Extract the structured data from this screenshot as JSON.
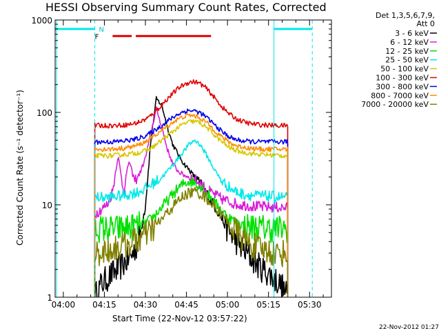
{
  "chart_data": {
    "type": "line",
    "title": "HESSI Observing Summary Count Rates, Corrected",
    "xlabel": "Start Time (22-Nov-12 03:57:22)",
    "ylabel": "Corrected Count Rate (s⁻¹ detector⁻¹)",
    "yscale": "log",
    "ylim": [
      1,
      1000
    ],
    "xlim_minutes": [
      -3,
      98
    ],
    "x_unit": "minutes after 04:00 UT",
    "x_tick_labels": [
      "04:00",
      "04:15",
      "04:30",
      "04:45",
      "05:00",
      "05:15",
      "05:30"
    ],
    "x_tick_values": [
      0,
      15,
      30,
      45,
      60,
      75,
      90
    ],
    "y_tick_labels": [
      "1",
      "10",
      "100",
      "1000"
    ],
    "y_tick_values": [
      1,
      10,
      100,
      1000
    ],
    "legend_header": [
      "Det 1,3,5,6,7,9,",
      "Att 0"
    ],
    "legend_position": "right",
    "data_range_minutes": [
      11.5,
      82
    ],
    "series": [
      {
        "name": "3 - 6 keV",
        "color": "#000000",
        "x": [
          11.5,
          14,
          16,
          18,
          20,
          22,
          24,
          26,
          28,
          30,
          32,
          34,
          36,
          38,
          40,
          42,
          44,
          46,
          48,
          50,
          52,
          54,
          56,
          58,
          60,
          62,
          64,
          66,
          68,
          70,
          72,
          74,
          76,
          78,
          80,
          82
        ],
        "y": [
          1,
          1.4,
          1.6,
          1.8,
          2.0,
          2.3,
          2.6,
          3.2,
          4.5,
          10,
          50,
          140,
          120,
          70,
          45,
          35,
          28,
          24,
          20,
          17,
          14,
          11,
          9,
          7,
          5.5,
          4.5,
          3.8,
          3.2,
          2.8,
          2.4,
          2.1,
          1.9,
          1.7,
          1.5,
          1.3,
          1.0
        ]
      },
      {
        "name": "6 - 12 keV",
        "color": "#d81ed8",
        "x": [
          11.5,
          14,
          16,
          18,
          20,
          22,
          24,
          26,
          28,
          30,
          32,
          34,
          36,
          38,
          40,
          42,
          44,
          46,
          48,
          50,
          52,
          54,
          56,
          58,
          60,
          62,
          64,
          66,
          68,
          70,
          72,
          74,
          76,
          78,
          80,
          82
        ],
        "y": [
          8,
          9,
          10,
          14,
          34,
          14,
          30,
          18,
          22,
          32,
          60,
          110,
          70,
          40,
          28,
          23,
          21,
          20,
          19,
          17,
          15,
          13.5,
          12.5,
          11.5,
          11,
          10.5,
          10,
          10,
          9.8,
          9.6,
          9.5,
          9.5,
          9.4,
          9.4,
          9.3,
          9.3
        ]
      },
      {
        "name": "12 - 25 keV",
        "color": "#00e000",
        "x": [
          11.5,
          14,
          16,
          18,
          20,
          22,
          24,
          26,
          28,
          30,
          32,
          34,
          36,
          38,
          40,
          42,
          44,
          46,
          48,
          50,
          52,
          54,
          56,
          58,
          60,
          62,
          64,
          66,
          68,
          70,
          72,
          74,
          76,
          78,
          80,
          82
        ],
        "y": [
          5.5,
          5.5,
          5.5,
          5.5,
          5.5,
          5.6,
          5.7,
          5.8,
          6.0,
          6.3,
          7.0,
          8.0,
          9.5,
          11,
          13,
          15,
          17,
          18,
          17.5,
          16,
          14,
          12,
          10,
          8.5,
          7.5,
          6.8,
          6.3,
          6.0,
          5.8,
          5.7,
          5.6,
          5.6,
          5.5,
          5.5,
          5.5,
          5.5
        ]
      },
      {
        "name": "25 - 50 keV",
        "color": "#00e8e8",
        "x": [
          11.5,
          14,
          16,
          18,
          20,
          22,
          24,
          26,
          28,
          30,
          32,
          34,
          36,
          38,
          40,
          42,
          44,
          46,
          48,
          50,
          52,
          54,
          56,
          58,
          60,
          62,
          64,
          66,
          68,
          70,
          72,
          74,
          76,
          78,
          80,
          82
        ],
        "y": [
          12,
          12,
          12,
          12.2,
          12.4,
          12.6,
          13,
          13.5,
          14,
          15,
          16.5,
          18,
          20,
          23,
          27,
          32,
          38,
          45,
          50,
          45,
          36,
          28,
          22,
          18,
          16,
          14.5,
          13.5,
          13,
          12.8,
          12.6,
          12.5,
          12.4,
          12.3,
          12.2,
          12.1,
          12
        ]
      },
      {
        "name": "50 - 100 keV",
        "color": "#d8c800",
        "x": [
          11.5,
          14,
          16,
          18,
          20,
          22,
          24,
          26,
          28,
          30,
          32,
          34,
          36,
          38,
          40,
          42,
          44,
          46,
          48,
          50,
          52,
          54,
          56,
          58,
          60,
          62,
          64,
          66,
          68,
          70,
          72,
          74,
          76,
          78,
          80,
          82
        ],
        "y": [
          34,
          34,
          34,
          34,
          34.5,
          35,
          35.5,
          36,
          37,
          38.5,
          41,
          45,
          50,
          56,
          62,
          69,
          75,
          79,
          80,
          77,
          70,
          62,
          54,
          48,
          43,
          40,
          38,
          37,
          36,
          35.5,
          35,
          35,
          34.5,
          34.5,
          34,
          34
        ]
      },
      {
        "name": "100 - 300 keV",
        "color": "#e00000",
        "x": [
          11.5,
          14,
          16,
          18,
          20,
          22,
          24,
          26,
          28,
          30,
          32,
          34,
          36,
          38,
          40,
          42,
          44,
          46,
          48,
          50,
          52,
          54,
          56,
          58,
          60,
          62,
          64,
          66,
          68,
          70,
          72,
          74,
          76,
          78,
          80,
          82
        ],
        "y": [
          72,
          72,
          72,
          72,
          72.5,
          73,
          74,
          76,
          79,
          84,
          92,
          105,
          120,
          140,
          160,
          182,
          200,
          212,
          215,
          205,
          185,
          160,
          135,
          115,
          100,
          90,
          83,
          79,
          76,
          74.5,
          73.5,
          73,
          72.5,
          72,
          72,
          72
        ]
      },
      {
        "name": "300 - 800 keV",
        "color": "#0000e8",
        "x": [
          11.5,
          14,
          16,
          18,
          20,
          22,
          24,
          26,
          28,
          30,
          32,
          34,
          36,
          38,
          40,
          42,
          44,
          46,
          48,
          50,
          52,
          54,
          56,
          58,
          60,
          62,
          64,
          66,
          68,
          70,
          72,
          74,
          76,
          78,
          80,
          82
        ],
        "y": [
          48,
          48,
          48,
          48,
          48.5,
          49,
          50,
          51,
          53,
          56,
          60,
          66,
          72,
          80,
          88,
          96,
          102,
          105,
          104,
          99,
          90,
          80,
          70,
          62,
          56,
          52,
          50,
          49,
          48.5,
          48,
          48,
          48,
          48,
          48,
          48,
          48
        ]
      },
      {
        "name": "800 - 7000 keV",
        "color": "#ff8c00",
        "x": [
          11.5,
          14,
          16,
          18,
          20,
          22,
          24,
          26,
          28,
          30,
          32,
          34,
          36,
          38,
          40,
          42,
          44,
          46,
          48,
          50,
          52,
          54,
          56,
          58,
          60,
          62,
          64,
          66,
          68,
          70,
          72,
          74,
          76,
          78,
          80,
          82
        ],
        "y": [
          40,
          40,
          40,
          40,
          40.5,
          41,
          42,
          43,
          45,
          48,
          52,
          58,
          64,
          71,
          78,
          85,
          90,
          93,
          92,
          87,
          79,
          70,
          61,
          54,
          49,
          45,
          43,
          42,
          41,
          40.5,
          40,
          40,
          40,
          40,
          40,
          40
        ]
      },
      {
        "name": "7000 - 20000 keV",
        "color": "#808000",
        "x": [
          11.5,
          14,
          16,
          18,
          20,
          22,
          24,
          26,
          28,
          30,
          32,
          34,
          36,
          38,
          40,
          42,
          44,
          46,
          48,
          50,
          52,
          54,
          56,
          58,
          60,
          62,
          64,
          66,
          68,
          70,
          72,
          74,
          76,
          78,
          80,
          82
        ],
        "y": [
          3,
          3.1,
          3.2,
          3.3,
          3.5,
          3.6,
          3.8,
          4.0,
          4.3,
          4.6,
          5.2,
          6.0,
          7.0,
          8.2,
          9.5,
          11,
          12.5,
          13.5,
          13.8,
          13.2,
          12,
          10.5,
          9.0,
          7.8,
          6.5,
          5.6,
          4.8,
          4.2,
          3.8,
          3.5,
          3.3,
          3.2,
          3.1,
          3.0,
          3.0,
          3.0
        ]
      }
    ],
    "annotations": {
      "saa_bars": [
        {
          "color": "#00e8e8",
          "x_start": -3,
          "x_end": 11.5,
          "y": 800
        },
        {
          "color": "#00e8e8",
          "x_start": 77,
          "x_end": 91,
          "y": 800
        }
      ],
      "saa_dashed_lines_minutes": [
        11.5,
        91
      ],
      "night_lines_minutes": [
        -2.5,
        77
      ],
      "flag_bar": {
        "color": "#e00000",
        "x_start": 18,
        "x_end": 54,
        "y": 670
      },
      "flag_labels": [
        {
          "text": "N",
          "x": 13,
          "y": 800
        },
        {
          "text": "F",
          "x": 11.5,
          "y": 670
        }
      ]
    }
  },
  "footer": {
    "timestamp": "22-Nov-2012 01:27"
  }
}
